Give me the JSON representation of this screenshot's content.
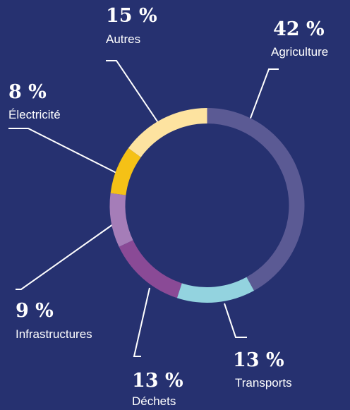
{
  "chart_data": {
    "type": "donut",
    "categories": [
      "Agriculture",
      "Transports",
      "Déchets",
      "Infrastructures",
      "Électricité",
      "Autres"
    ],
    "values": [
      42,
      13,
      13,
      9,
      8,
      15
    ],
    "value_labels": [
      "42 %",
      "13 %",
      "13 %",
      "9 %",
      "8 %",
      "15 %"
    ],
    "colors": [
      "#5b5a94",
      "#93d3df",
      "#8a4a96",
      "#a57db8",
      "#f5c116",
      "#fde3a0"
    ]
  }
}
